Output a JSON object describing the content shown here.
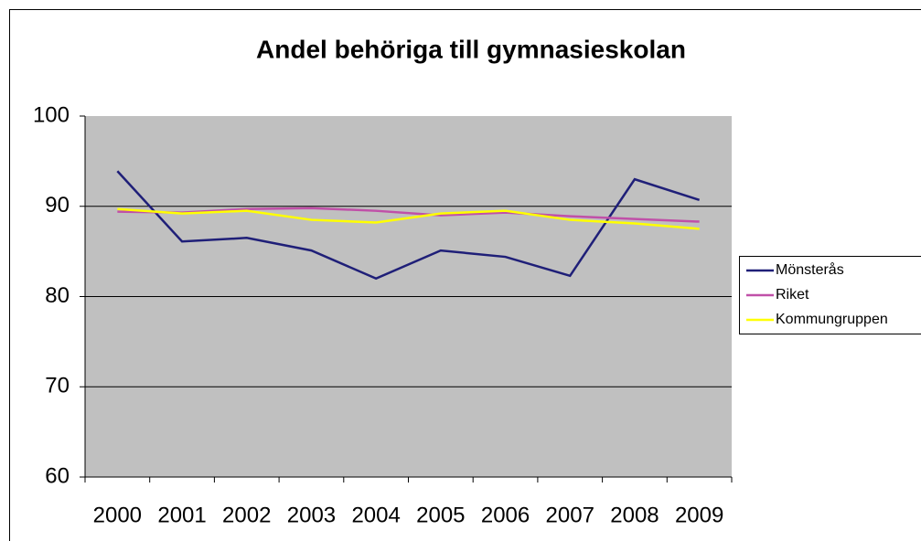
{
  "chart_data": {
    "type": "line",
    "title": "Andel behöriga till gymnasieskolan",
    "categories": [
      "2000",
      "2001",
      "2002",
      "2003",
      "2004",
      "2005",
      "2006",
      "2007",
      "2008",
      "2009"
    ],
    "series": [
      {
        "name": "Mönsterås",
        "color": "#1f1f78",
        "values": [
          93.9,
          86.1,
          86.5,
          85.1,
          82.0,
          85.1,
          84.4,
          82.3,
          93.0,
          90.7
        ]
      },
      {
        "name": "Riket",
        "color": "#c050a8",
        "values": [
          89.4,
          89.3,
          89.7,
          89.8,
          89.5,
          89.0,
          89.3,
          88.9,
          88.6,
          88.3
        ]
      },
      {
        "name": "Kommungruppen",
        "color": "#ffff00",
        "values": [
          89.7,
          89.2,
          89.5,
          88.5,
          88.2,
          89.2,
          89.5,
          88.5,
          88.1,
          87.5
        ]
      }
    ],
    "ylim": [
      60,
      100
    ],
    "yticks": [
      60,
      70,
      80,
      90,
      100
    ],
    "grid": true,
    "legend": "right"
  }
}
